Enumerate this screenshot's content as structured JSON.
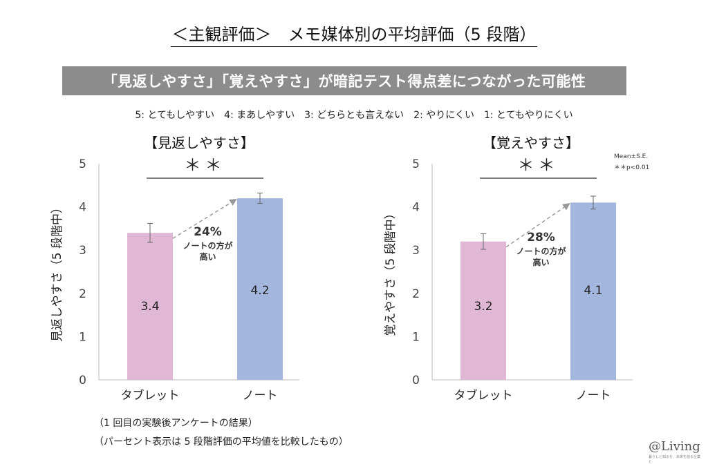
{
  "title": "＜主観評価＞　メモ媒体別の平均評価（5 段階）",
  "banner": "「見返しやすさ」「覚えやすさ」が暗記テスト得点差につながった可能性",
  "scale_legend": "5: とてもしやすい　4: まあしやすい　3: どちらとも言えない　2: やりにくい　1: とてもやりにくい",
  "stats_note": {
    "line1": "Mean±S.E.",
    "line2": "＊＊p<0.01"
  },
  "footnotes": [
    "（1 回目の実験後アンケートの結果）",
    "（パーセント表示は 5 段階評価の平均値を比較したもの）"
  ],
  "logo": {
    "main": "@Living",
    "sub": "暮らしと知るを、未来を創る企業と"
  },
  "colors": {
    "tablet": "#e0b8d6",
    "note": "#a3b6dd",
    "axis": "#bbbbbb",
    "arrow": "#999999"
  },
  "chart_data": [
    {
      "type": "bar",
      "title": "【見返しやすさ】",
      "ylabel": "見返しやすさ（5 段階中）",
      "ylim": [
        0,
        5
      ],
      "yticks": [
        "0",
        "1",
        "2",
        "3",
        "4",
        "5"
      ],
      "categories": [
        "タブレット",
        "ノート"
      ],
      "values": [
        3.4,
        4.2
      ],
      "value_labels": [
        "3.4",
        "4.2"
      ],
      "errors": [
        0.22,
        0.12
      ],
      "significance": "＊＊",
      "diff_percent": "24%",
      "diff_note": [
        "ノートの方が",
        "高い"
      ]
    },
    {
      "type": "bar",
      "title": "【覚えやすさ】",
      "ylabel": "覚えやすさ（5 段階中）",
      "ylim": [
        0,
        5
      ],
      "yticks": [
        "0",
        "1",
        "2",
        "3",
        "4",
        "5"
      ],
      "categories": [
        "タブレット",
        "ノート"
      ],
      "values": [
        3.2,
        4.1
      ],
      "value_labels": [
        "3.2",
        "4.1"
      ],
      "errors": [
        0.18,
        0.15
      ],
      "significance": "＊＊",
      "diff_percent": "28%",
      "diff_note": [
        "ノートの方が",
        "高い"
      ]
    }
  ]
}
